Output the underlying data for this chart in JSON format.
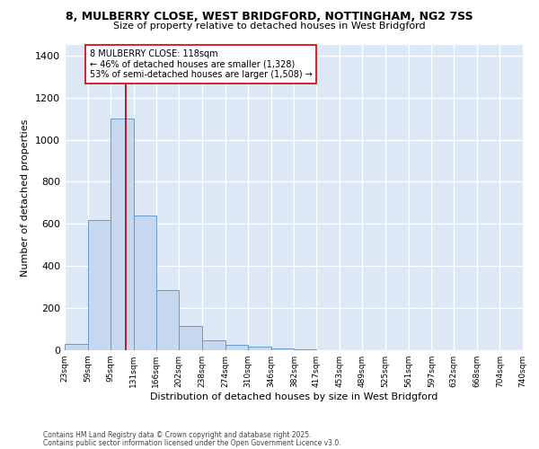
{
  "title1": "8, MULBERRY CLOSE, WEST BRIDGFORD, NOTTINGHAM, NG2 7SS",
  "title2": "Size of property relative to detached houses in West Bridgford",
  "xlabel": "Distribution of detached houses by size in West Bridgford",
  "ylabel": "Number of detached properties",
  "bin_edges": [
    23,
    59,
    95,
    131,
    166,
    202,
    238,
    274,
    310,
    346,
    382,
    417,
    453,
    489,
    525,
    561,
    597,
    632,
    668,
    704,
    740
  ],
  "bar_heights": [
    30,
    620,
    1100,
    640,
    285,
    115,
    47,
    25,
    15,
    10,
    5,
    0,
    0,
    0,
    0,
    0,
    0,
    0,
    0,
    0
  ],
  "bar_color": "#c5d8f0",
  "bar_edgecolor": "#6699cc",
  "bg_color": "#dce8f5",
  "grid_color": "#ffffff",
  "property_size": 118,
  "vline_color": "#aa0000",
  "annotation_text": "8 MULBERRY CLOSE: 118sqm\n← 46% of detached houses are smaller (1,328)\n53% of semi-detached houses are larger (1,508) →",
  "annotation_box_color": "#ffffff",
  "annotation_box_edgecolor": "#cc0000",
  "ylim": [
    0,
    1450
  ],
  "yticks": [
    0,
    200,
    400,
    600,
    800,
    1000,
    1200,
    1400
  ],
  "tick_labels": [
    "23sqm",
    "59sqm",
    "95sqm",
    "131sqm",
    "166sqm",
    "202sqm",
    "238sqm",
    "274sqm",
    "310sqm",
    "346sqm",
    "382sqm",
    "417sqm",
    "453sqm",
    "489sqm",
    "525sqm",
    "561sqm",
    "597sqm",
    "632sqm",
    "668sqm",
    "704sqm",
    "740sqm"
  ],
  "footnote1": "Contains HM Land Registry data © Crown copyright and database right 2025.",
  "footnote2": "Contains public sector information licensed under the Open Government Licence v3.0."
}
